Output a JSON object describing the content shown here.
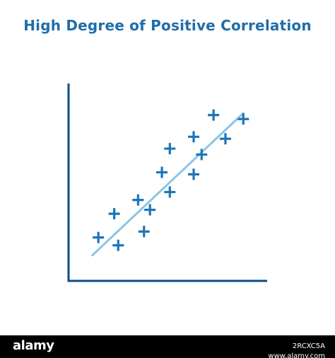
{
  "colors": {
    "title": "#1f6ea8",
    "axis": "#0d4d86",
    "marker": "#1d75b8",
    "trend_line": "#8dc4e8",
    "footer_bg": "#000000",
    "footer_text": "#ffffff"
  },
  "chart_data": {
    "type": "scatter",
    "title": "High Degree of Positive Correlation",
    "xlabel": "",
    "ylabel": "",
    "xlim": [
      0,
      100
    ],
    "ylim": [
      0,
      100
    ],
    "grid": false,
    "marker": "plus",
    "points": [
      {
        "x": 15,
        "y": 22
      },
      {
        "x": 25,
        "y": 18
      },
      {
        "x": 23,
        "y": 34
      },
      {
        "x": 35,
        "y": 41
      },
      {
        "x": 38,
        "y": 25
      },
      {
        "x": 41,
        "y": 36
      },
      {
        "x": 47,
        "y": 55
      },
      {
        "x": 51,
        "y": 45
      },
      {
        "x": 51,
        "y": 67
      },
      {
        "x": 63,
        "y": 54
      },
      {
        "x": 63,
        "y": 73
      },
      {
        "x": 67,
        "y": 64
      },
      {
        "x": 73,
        "y": 84
      },
      {
        "x": 79,
        "y": 72
      },
      {
        "x": 88,
        "y": 82
      }
    ],
    "trend_line": {
      "x": [
        12,
        88
      ],
      "y": [
        13,
        85
      ]
    }
  },
  "footer": {
    "logo_text": "alamy",
    "image_id": "2RCXC5A",
    "site": "www.alamy.com"
  }
}
